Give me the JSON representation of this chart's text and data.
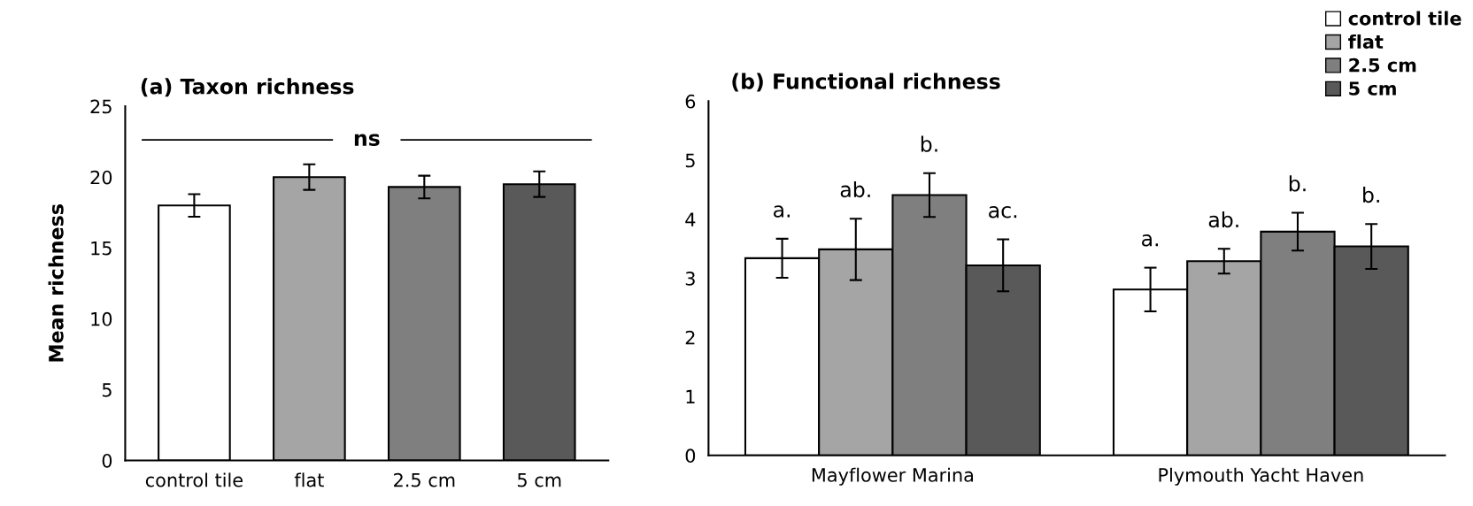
{
  "chart_data": [
    {
      "type": "bar",
      "title": "(a) Taxon richness",
      "ylabel": "Mean richness",
      "categories": [
        "control tile",
        "flat",
        "2.5 cm",
        "5 cm"
      ],
      "values": [
        18.0,
        20.0,
        19.3,
        19.5
      ],
      "errors": [
        0.8,
        0.9,
        0.8,
        0.9
      ],
      "colors": [
        "#ffffff",
        "#a5a5a5",
        "#7f7f7f",
        "#595959"
      ],
      "ylim": [
        0,
        25
      ],
      "yticks": [
        0,
        5,
        10,
        15,
        20,
        25
      ],
      "grid": false,
      "annotations": [
        "ns"
      ]
    },
    {
      "type": "bar",
      "title": "(b) Functional richness",
      "categories": [
        "Mayflower Marina",
        "Plymouth Yacht Haven"
      ],
      "series": [
        {
          "name": "control tile",
          "color": "#ffffff",
          "values": [
            3.34,
            2.81
          ],
          "errors": [
            0.33,
            0.37
          ]
        },
        {
          "name": "flat",
          "color": "#a5a5a5",
          "values": [
            3.49,
            3.29
          ],
          "errors": [
            0.52,
            0.21
          ]
        },
        {
          "name": "2.5 cm",
          "color": "#7f7f7f",
          "values": [
            4.41,
            3.79
          ],
          "errors": [
            0.37,
            0.32
          ]
        },
        {
          "name": "5 cm",
          "color": "#595959",
          "values": [
            3.22,
            3.54
          ],
          "errors": [
            0.44,
            0.38
          ]
        }
      ],
      "ylim": [
        0,
        6
      ],
      "yticks": [
        0,
        1,
        2,
        3,
        4,
        5,
        6
      ],
      "grid": false,
      "legend": "top right",
      "annotations": [
        "a.",
        "ab.",
        "b.",
        "ac.",
        "a.",
        "ab.",
        "b.",
        "b."
      ]
    }
  ]
}
